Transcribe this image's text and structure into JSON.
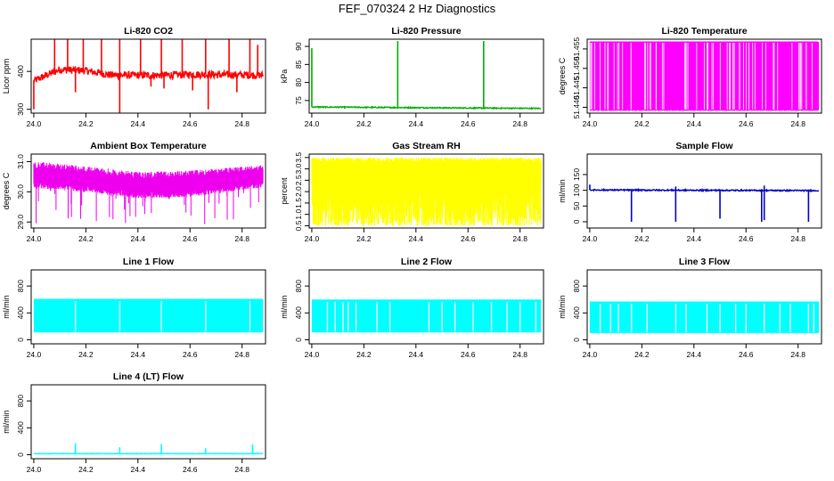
{
  "figure": {
    "title": "FEF_070324  2 Hz Diagnostics"
  },
  "chart_data": [
    {
      "type": "line",
      "title": "Li-820 CO2",
      "xlabel": "",
      "ylabel": "Licor ppm",
      "color": "#ff0000",
      "xlim": [
        23.99,
        24.89
      ],
      "ylim": [
        290,
        485
      ],
      "xticks": [
        "24.0",
        "24.2",
        "24.4",
        "24.6",
        "24.8"
      ],
      "yticks": [
        300,
        400
      ],
      "ytick_labels": [
        "300",
        "400"
      ],
      "baseline": 390,
      "noise": 10,
      "segments": [
        [
          24.0,
          375
        ],
        [
          24.1,
          405
        ],
        [
          24.2,
          402
        ],
        [
          24.3,
          390
        ],
        [
          24.5,
          390
        ],
        [
          24.6,
          392
        ],
        [
          24.88,
          390
        ]
      ],
      "spikes": [
        [
          24.08,
          485
        ],
        [
          24.13,
          485
        ],
        [
          24.19,
          485
        ],
        [
          24.26,
          485
        ],
        [
          24.33,
          485
        ],
        [
          24.41,
          485
        ],
        [
          24.49,
          485
        ],
        [
          24.57,
          485
        ],
        [
          24.66,
          485
        ],
        [
          24.75,
          485
        ],
        [
          24.83,
          485
        ],
        [
          24.86,
          470
        ]
      ],
      "dips": [
        [
          24.0,
          300
        ],
        [
          24.16,
          345
        ],
        [
          24.33,
          290
        ],
        [
          24.45,
          360
        ],
        [
          24.5,
          355
        ],
        [
          24.61,
          350
        ],
        [
          24.67,
          300
        ],
        [
          24.78,
          345
        ]
      ]
    },
    {
      "type": "line",
      "title": "Li-820 Pressure",
      "xlabel": "",
      "ylabel": "kPa",
      "color": "#00b000",
      "xlim": [
        23.99,
        24.89
      ],
      "ylim": [
        71.5,
        92
      ],
      "xticks": [
        "24.0",
        "24.2",
        "24.4",
        "24.6",
        "24.8"
      ],
      "yticks": [
        75,
        80,
        85,
        90
      ],
      "ytick_labels": [
        "75",
        "80",
        "85",
        "90"
      ],
      "baseline": 73.0,
      "noise": 0.15,
      "segments": [
        [
          24.0,
          73.2
        ],
        [
          24.88,
          72.8
        ]
      ],
      "spikes": [
        [
          24.0,
          89.5
        ],
        [
          24.33,
          91.5
        ],
        [
          24.66,
          91.5
        ]
      ],
      "dips": []
    },
    {
      "type": "line",
      "title": "Li-820 Temperature",
      "xlabel": "",
      "ylabel": "degrees C",
      "color": "#ff00ff",
      "xlim": [
        23.99,
        24.89
      ],
      "ylim": [
        51.4385,
        51.4575
      ],
      "xticks": [
        "24.0",
        "24.2",
        "24.4",
        "24.6",
        "24.8"
      ],
      "yticks": [
        51.44,
        51.445,
        51.45,
        51.455
      ],
      "ytick_labels": [
        "51.440",
        "51.445",
        "51.450",
        "51.455"
      ],
      "levels": [
        51.4392,
        51.4568
      ],
      "density": 110
    },
    {
      "type": "line",
      "title": "Ambient Box Temperature",
      "xlabel": "",
      "ylabel": "degrees C",
      "color": "#ee00ee",
      "xlim": [
        23.99,
        24.89
      ],
      "ylim": [
        28.8,
        31.25
      ],
      "xticks": [
        "24.0",
        "24.2",
        "24.4",
        "24.6",
        "24.8"
      ],
      "yticks": [
        29.0,
        30.0,
        31.0
      ],
      "ytick_labels": [
        "29.0",
        "30.0",
        "31.0"
      ],
      "band": [
        [
          24.0,
          30.55,
          0.35
        ],
        [
          24.2,
          30.4,
          0.35
        ],
        [
          24.4,
          30.2,
          0.35
        ],
        [
          24.6,
          30.25,
          0.35
        ],
        [
          24.88,
          30.5,
          0.3
        ]
      ],
      "dipmin": 28.9
    },
    {
      "type": "line",
      "title": "Gas Stream RH",
      "xlabel": "",
      "ylabel": "percent",
      "color": "#ffff00",
      "xlim": [
        23.99,
        24.89
      ],
      "ylim": [
        0.4,
        3.65
      ],
      "xticks": [
        "24.0",
        "24.2",
        "24.4",
        "24.6",
        "24.8"
      ],
      "yticks": [
        0.5,
        1.0,
        1.5,
        2.0,
        2.5,
        3.0,
        3.5
      ],
      "ytick_labels": [
        "0.5",
        "1.0",
        "1.5",
        "2.0",
        "2.5",
        "3.0",
        "3.5"
      ],
      "top": [
        3.3,
        3.5
      ],
      "bottom": [
        0.5,
        2.4
      ]
    },
    {
      "type": "line",
      "title": "Sample Flow",
      "xlabel": "",
      "ylabel": "ml/min",
      "color": "#0000cc",
      "xlim": [
        23.99,
        24.89
      ],
      "ylim": [
        -20,
        215
      ],
      "xticks": [
        "24.0",
        "24.2",
        "24.4",
        "24.6",
        "24.8"
      ],
      "yticks": [
        0,
        50,
        100,
        150
      ],
      "ytick_labels": [
        "0",
        "50",
        "100",
        "150"
      ],
      "baseline": 100,
      "noise": 2,
      "segments": [
        [
          24.0,
          101
        ],
        [
          24.88,
          99
        ]
      ],
      "spikes": [
        [
          24.0,
          118
        ],
        [
          24.33,
          112
        ],
        [
          24.67,
          115
        ]
      ],
      "dips": [
        [
          24.16,
          0
        ],
        [
          24.33,
          0
        ],
        [
          24.5,
          10
        ],
        [
          24.66,
          0
        ],
        [
          24.67,
          5
        ],
        [
          24.84,
          0
        ]
      ]
    },
    {
      "type": "line",
      "title": "Line 1 Flow",
      "xlabel": "",
      "ylabel": "ml/min",
      "color": "#00ffff",
      "xlim": [
        23.99,
        24.89
      ],
      "ylim": [
        -60,
        1040
      ],
      "xticks": [
        "24.0",
        "24.2",
        "24.4",
        "24.6",
        "24.8"
      ],
      "yticks": [
        0,
        400,
        800
      ],
      "ytick_labels": [
        "0",
        "400",
        "800"
      ],
      "hi": 600,
      "lo": 110,
      "gaps": [
        24.16,
        24.33,
        24.49,
        24.66,
        24.83
      ]
    },
    {
      "type": "line",
      "title": "Line 2 Flow",
      "xlabel": "",
      "ylabel": "ml/min",
      "color": "#00ffff",
      "xlim": [
        23.99,
        24.89
      ],
      "ylim": [
        -60,
        1040
      ],
      "xticks": [
        "24.0",
        "24.2",
        "24.4",
        "24.6",
        "24.8"
      ],
      "yticks": [
        0,
        400,
        800
      ],
      "ytick_labels": [
        "0",
        "400",
        "800"
      ],
      "hi": 590,
      "lo": 110,
      "gaps": [
        24.06,
        24.09,
        24.12,
        24.14,
        24.17,
        24.25,
        24.3,
        24.45,
        24.5,
        24.55,
        24.62,
        24.69,
        24.75,
        24.8,
        24.86
      ]
    },
    {
      "type": "line",
      "title": "Line 3 Flow",
      "xlabel": "",
      "ylabel": "ml/min",
      "color": "#00ffff",
      "xlim": [
        23.99,
        24.89
      ],
      "ylim": [
        -60,
        1040
      ],
      "xticks": [
        "24.0",
        "24.2",
        "24.4",
        "24.6",
        "24.8"
      ],
      "yticks": [
        0,
        400,
        800
      ],
      "ytick_labels": [
        "0",
        "400",
        "800"
      ],
      "hi": 560,
      "lo": 100,
      "gaps": [
        24.04,
        24.08,
        24.11,
        24.16,
        24.22,
        24.33,
        24.37,
        24.45,
        24.5,
        24.56,
        24.6,
        24.67,
        24.73,
        24.77,
        24.84,
        24.86
      ]
    },
    {
      "type": "line",
      "title": "Line 4 (LT) Flow",
      "xlabel": "",
      "ylabel": "ml/min",
      "color": "#00ffff",
      "xlim": [
        23.99,
        24.89
      ],
      "ylim": [
        -60,
        1040
      ],
      "xticks": [
        "24.0",
        "24.2",
        "24.4",
        "24.6",
        "24.8"
      ],
      "yticks": [
        0,
        400,
        800
      ],
      "ytick_labels": [
        "0",
        "400",
        "800"
      ],
      "baseline": 15,
      "noise": 3,
      "segments": [
        [
          24.0,
          15
        ],
        [
          24.88,
          15
        ]
      ],
      "spikes": [
        [
          24.16,
          170
        ],
        [
          24.33,
          110
        ],
        [
          24.49,
          160
        ],
        [
          24.66,
          95
        ],
        [
          24.84,
          150
        ]
      ],
      "dips": []
    }
  ]
}
